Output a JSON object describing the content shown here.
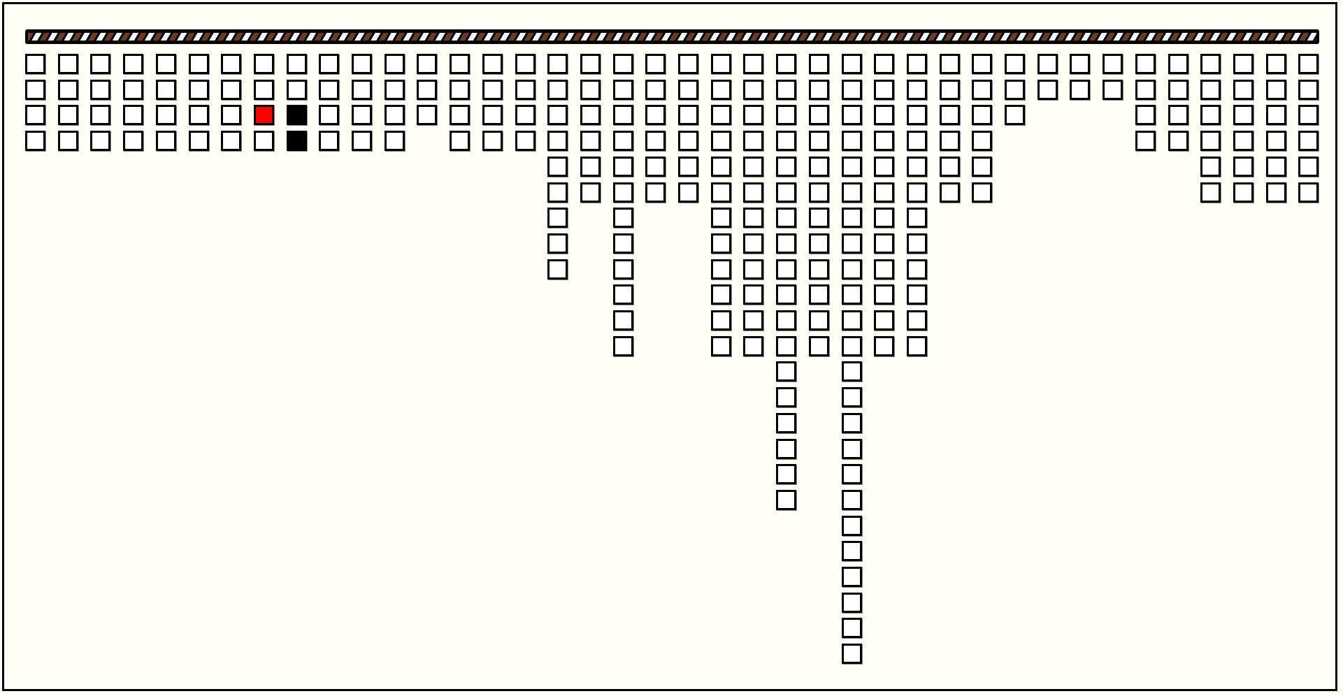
{
  "game": {
    "column_heights": [
      4,
      4,
      4,
      4,
      4,
      4,
      4,
      4,
      4,
      4,
      4,
      4,
      3,
      4,
      4,
      4,
      9,
      6,
      12,
      6,
      6,
      12,
      12,
      18,
      12,
      24,
      12,
      12,
      6,
      6,
      3,
      2,
      2,
      2,
      4,
      4,
      6,
      6,
      6,
      6
    ],
    "special_cells": [
      {
        "column": 8,
        "row": 3,
        "state": "selected-red"
      },
      {
        "column": 9,
        "row": 3,
        "state": "filled-black"
      },
      {
        "column": 9,
        "row": 4,
        "state": "filled-black"
      }
    ],
    "colors": {
      "background": "#fffff6",
      "cell": "#ffffff",
      "cell_border": "#000000",
      "selected": "#ff0000",
      "filled": "#000000",
      "bar_stripe_brown": "#6b3a1f",
      "bar_stripe_white": "#f4f4f4"
    }
  }
}
